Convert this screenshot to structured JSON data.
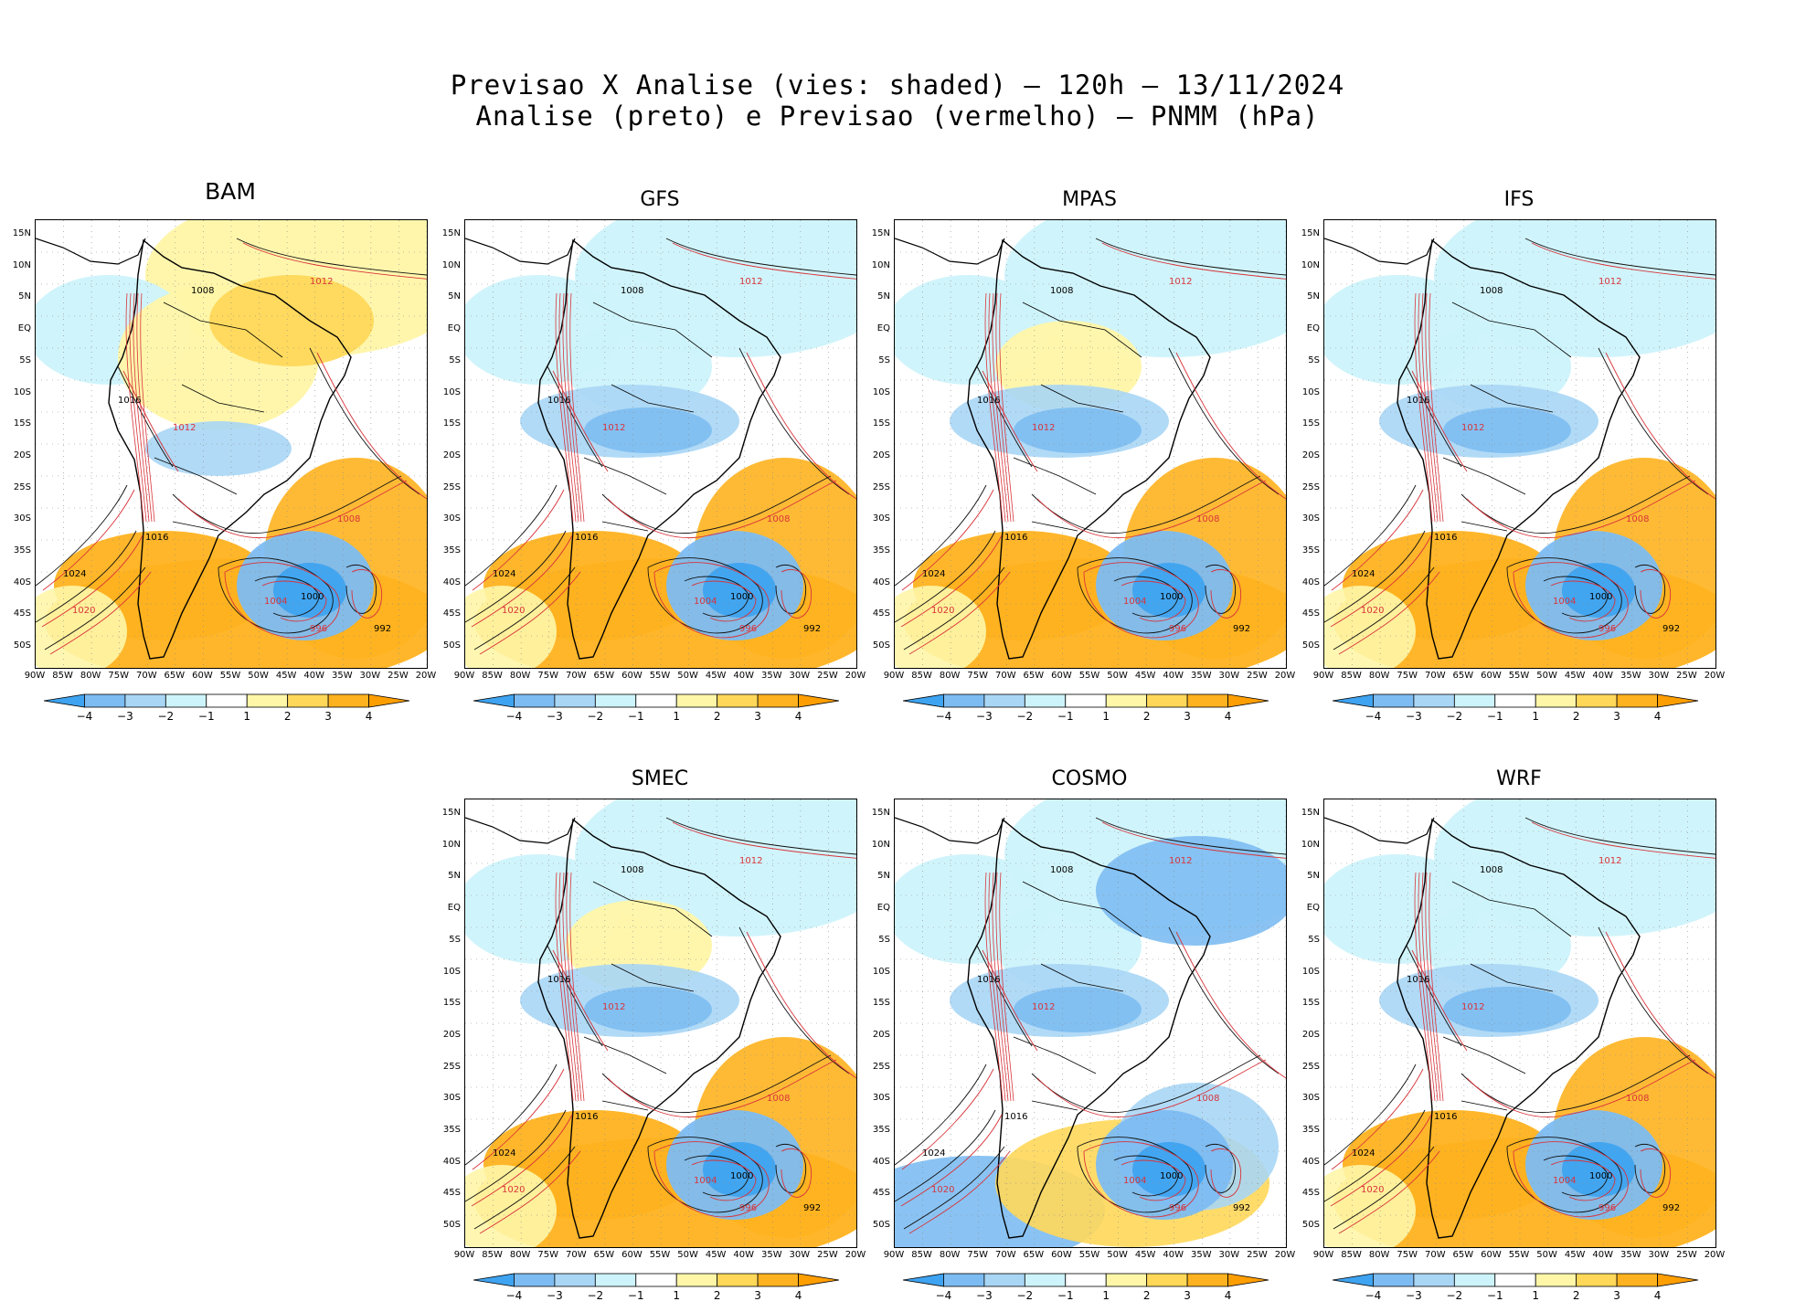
{
  "title": {
    "line1": "Previsao X Analise (vies: shaded) — 120h — 13/11/2024",
    "line2": "Analise (preto) e Previsao (vermelho) — PNMM (hPa)"
  },
  "lat_labels": [
    "15N",
    "10N",
    "5N",
    "EQ",
    "5S",
    "10S",
    "15S",
    "20S",
    "25S",
    "30S",
    "35S",
    "40S",
    "45S",
    "50S"
  ],
  "lon_labels": [
    "90W",
    "85W",
    "80W",
    "75W",
    "70W",
    "65W",
    "60W",
    "55W",
    "50W",
    "45W",
    "40W",
    "35W",
    "30W",
    "25W",
    "20W"
  ],
  "colorbar": {
    "labels": [
      "−4",
      "−3",
      "−2",
      "−1",
      "1",
      "2",
      "3",
      "4"
    ],
    "colors": [
      "#3ea3f0",
      "#7dbcf2",
      "#a9d6f5",
      "#cdf3fb",
      "#ffffff",
      "#fff6a8",
      "#ffd85a",
      "#ffb21f",
      "#ff9e00"
    ]
  },
  "panels": [
    {
      "name": "BAM",
      "bias": "warm"
    },
    {
      "name": "GFS",
      "bias": "mixed"
    },
    {
      "name": "MPAS",
      "bias": "mixed"
    },
    {
      "name": "IFS",
      "bias": "mixed"
    },
    {
      "name": "SMEC",
      "bias": "mixed"
    },
    {
      "name": "COSMO",
      "bias": "cold"
    },
    {
      "name": "WRF",
      "bias": "mixed"
    }
  ],
  "contour_labels": [
    "1024",
    "1020",
    "1016",
    "1012",
    "1008",
    "1004",
    "1000",
    "996",
    "992"
  ]
}
